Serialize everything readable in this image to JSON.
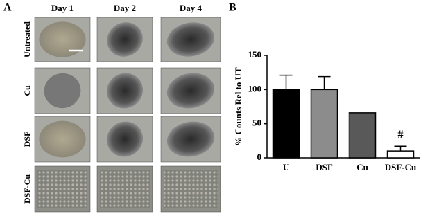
{
  "panel_a": {
    "label": "A",
    "columns": [
      "Day 1",
      "Day 2",
      "Day 4"
    ],
    "rows": [
      "Untreated",
      "Cu",
      "DSF",
      "DSF-Cu"
    ]
  },
  "chart_data": {
    "type": "bar",
    "panel_label": "B",
    "y_label": "% Counts Rel to UT",
    "categories": [
      "U",
      "DSF",
      "Cu",
      "DSF-Cu"
    ],
    "values": [
      100,
      100,
      66,
      10
    ],
    "errors": [
      21,
      19,
      null,
      7
    ],
    "colors": [
      "#000000",
      "#8c8c8c",
      "#595959",
      "#ffffff"
    ],
    "annotations": [
      {
        "text": "#",
        "category": 3
      }
    ],
    "ylim": [
      0,
      150
    ],
    "yticks": [
      0,
      50,
      100,
      150
    ],
    "grid": false
  }
}
